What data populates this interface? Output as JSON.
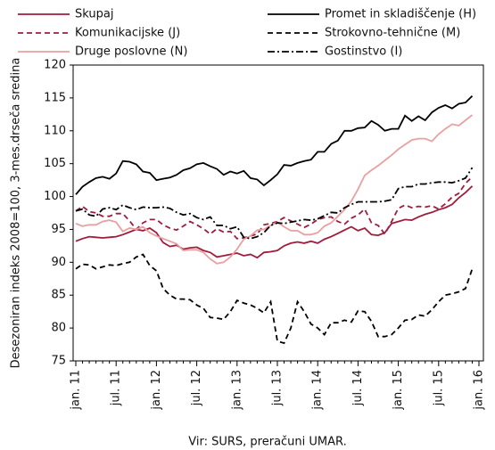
{
  "chart_data": {
    "type": "line",
    "y_label": "Desezoniran indeks 2008=100, 3-mes.drseča sredina",
    "source": "Vir:  SURS, preračuni UMAR.",
    "categories": [
      "jan. 11",
      null,
      null,
      null,
      null,
      null,
      "jul. 11",
      null,
      null,
      null,
      null,
      null,
      "jan. 12",
      null,
      null,
      null,
      null,
      null,
      "jul. 12",
      null,
      null,
      null,
      null,
      null,
      "jan. 13",
      null,
      null,
      null,
      null,
      null,
      "jul. 13",
      null,
      null,
      null,
      null,
      null,
      "jan. 14",
      null,
      null,
      null,
      null,
      null,
      "jul. 14",
      null,
      null,
      null,
      null,
      null,
      "jan. 15",
      null,
      null,
      null,
      null,
      null,
      "jul. 15",
      null,
      null,
      null,
      null,
      null,
      "jan. 16"
    ],
    "ylim": [
      75,
      120
    ],
    "yticks": [
      75,
      80,
      85,
      90,
      95,
      100,
      105,
      110,
      115,
      120
    ],
    "series": [
      {
        "name": "Skupaj",
        "color": "#a01c3c",
        "dash": "solid",
        "values": [
          93.2,
          93.6,
          93.9,
          93.8,
          93.7,
          93.8,
          93.9,
          94.2,
          94.6,
          95.0,
          94.8,
          95.2,
          94.5,
          93.0,
          92.4,
          92.6,
          92.0,
          92.2,
          92.3,
          91.8,
          91.5,
          90.8,
          91.0,
          91.2,
          91.4,
          91.0,
          91.2,
          90.7,
          91.5,
          91.6,
          91.8,
          92.5,
          92.9,
          93.1,
          92.9,
          93.2,
          92.9,
          93.5,
          93.9,
          94.4,
          94.9,
          95.4,
          94.8,
          95.2,
          94.2,
          94.1,
          94.5,
          95.9,
          96.2,
          96.5,
          96.4,
          96.9,
          97.3,
          97.6,
          98.0,
          98.3,
          98.8,
          99.8,
          100.6,
          101.6,
          null
        ]
      },
      {
        "name": "Promet in skladiščenje (H)",
        "color": "#000000",
        "dash": "solid",
        "values": [
          100.3,
          101.5,
          102.2,
          102.8,
          103.0,
          102.7,
          103.5,
          105.4,
          105.3,
          104.9,
          103.8,
          103.6,
          102.5,
          102.7,
          102.9,
          103.3,
          104.0,
          104.3,
          104.9,
          105.1,
          104.6,
          104.2,
          103.3,
          103.8,
          103.5,
          103.9,
          102.8,
          102.6,
          101.7,
          102.5,
          103.4,
          104.8,
          104.7,
          105.1,
          105.4,
          105.6,
          106.8,
          106.8,
          108.0,
          108.5,
          110.0,
          110.0,
          110.4,
          110.5,
          111.5,
          110.9,
          110.0,
          110.3,
          110.3,
          112.3,
          111.5,
          112.2,
          111.6,
          112.8,
          113.5,
          113.9,
          113.4,
          114.1,
          114.3,
          115.3,
          null
        ]
      },
      {
        "name": "Komunikacijske (J)",
        "color": "#a01c3c",
        "dash": "dashed",
        "values": [
          97.8,
          98.5,
          97.7,
          97.5,
          97.0,
          97.0,
          97.4,
          97.4,
          96.3,
          95.0,
          96.0,
          96.5,
          96.5,
          95.7,
          95.2,
          94.9,
          95.5,
          96.2,
          95.7,
          95.1,
          94.3,
          95.1,
          94.6,
          94.7,
          93.6,
          93.7,
          94.0,
          94.3,
          95.7,
          95.9,
          96.2,
          96.8,
          96.3,
          95.8,
          95.3,
          95.8,
          96.5,
          96.8,
          96.9,
          96.2,
          95.8,
          96.7,
          97.2,
          98.1,
          96.0,
          95.6,
          94.3,
          96.2,
          98.2,
          98.7,
          98.3,
          98.5,
          98.4,
          98.6,
          98.1,
          98.9,
          99.9,
          100.5,
          102.0,
          103.0,
          null
        ]
      },
      {
        "name": "Strokovno-tehnične (M)",
        "color": "#000000",
        "dash": "dashed",
        "values": [
          89.0,
          89.7,
          89.6,
          89.0,
          89.3,
          89.6,
          89.5,
          89.8,
          90.0,
          90.8,
          91.2,
          89.5,
          88.7,
          86.0,
          85.0,
          84.4,
          84.4,
          84.3,
          83.5,
          83.0,
          81.6,
          81.5,
          81.3,
          82.5,
          84.2,
          83.8,
          83.5,
          83.0,
          82.3,
          84.0,
          78.0,
          77.7,
          80.0,
          84.0,
          82.5,
          80.6,
          80.0,
          79.0,
          80.8,
          80.8,
          81.2,
          80.9,
          82.6,
          82.5,
          81.0,
          78.7,
          78.7,
          79.0,
          80.0,
          81.2,
          81.3,
          82.0,
          81.8,
          82.8,
          84.0,
          85.0,
          85.2,
          85.5,
          86.0,
          89.0,
          null
        ]
      },
      {
        "name": "Druge poslovne (N)",
        "color": "#e8a0a0",
        "dash": "solid",
        "values": [
          95.9,
          95.5,
          95.7,
          95.7,
          96.2,
          96.4,
          96.1,
          94.7,
          95.2,
          95.0,
          95.4,
          94.5,
          94.0,
          93.6,
          93.2,
          92.8,
          91.8,
          91.9,
          91.9,
          91.5,
          90.5,
          89.8,
          90.0,
          90.8,
          92.0,
          93.5,
          94.0,
          94.9,
          95.0,
          95.6,
          96.1,
          95.4,
          94.8,
          94.8,
          94.2,
          94.2,
          94.5,
          95.5,
          96.0,
          97.0,
          98.0,
          99.3,
          101.1,
          103.2,
          104.0,
          104.7,
          105.5,
          106.3,
          107.2,
          107.9,
          108.6,
          108.8,
          108.8,
          108.4,
          109.5,
          110.3,
          111.0,
          110.8,
          111.6,
          112.4,
          null
        ]
      },
      {
        "name": "Gostinstvo (I)",
        "color": "#000000",
        "dash": "dashdot",
        "values": [
          97.8,
          98.1,
          97.2,
          97.0,
          98.1,
          98.3,
          98.0,
          98.7,
          98.3,
          98.0,
          98.4,
          98.3,
          98.3,
          98.4,
          98.2,
          97.6,
          97.2,
          97.4,
          96.8,
          96.5,
          96.9,
          95.6,
          95.6,
          95.1,
          95.4,
          93.8,
          93.6,
          93.9,
          94.5,
          95.6,
          96.0,
          95.9,
          96.1,
          96.3,
          96.5,
          96.4,
          96.6,
          97.1,
          97.6,
          97.5,
          98.3,
          98.8,
          99.2,
          99.2,
          99.2,
          99.2,
          99.3,
          99.5,
          101.2,
          101.5,
          101.5,
          101.9,
          101.9,
          102.1,
          102.2,
          102.2,
          102.1,
          102.4,
          102.8,
          104.4,
          null
        ]
      }
    ]
  }
}
